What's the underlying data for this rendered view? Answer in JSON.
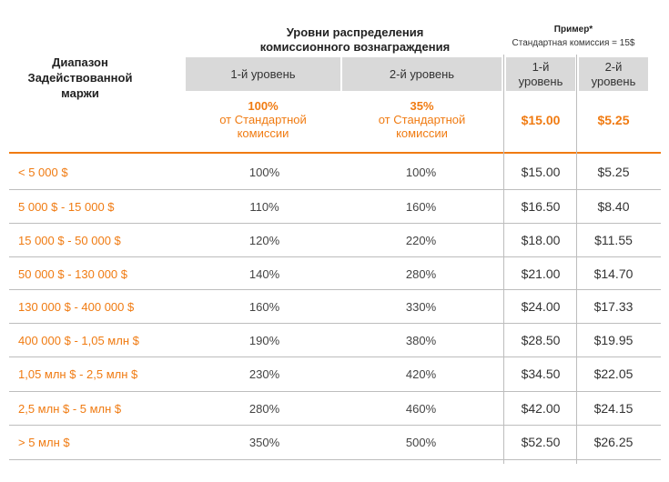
{
  "header": {
    "range_title": [
      "Диапазон",
      "Задействованной",
      "маржи"
    ],
    "levels_group_title": [
      "Уровни распределения",
      "комиссионного вознаграждения"
    ],
    "example_title": "Пример*",
    "example_note": "Стандартная комиссия = 15$",
    "level1_label": "1-й уровень",
    "level2_label": "2-й уровень",
    "ex_level1_label": [
      "1-й",
      "уровень"
    ],
    "ex_level2_label": [
      "2-й",
      "уровень"
    ]
  },
  "highlight": {
    "level1_pct": "100%",
    "level2_pct": "35%",
    "sub_line1": "от Стандартной",
    "sub_line2": "комиссии",
    "ex_level1": "$15.00",
    "ex_level2": "$5.25"
  },
  "rows": [
    {
      "range": "< 5 000 $",
      "l1": "100%",
      "l2": "100%",
      "e1": "$15.00",
      "e2": "$5.25"
    },
    {
      "range": "5 000 $ - 15 000 $",
      "l1": "110%",
      "l2": "160%",
      "e1": "$16.50",
      "e2": "$8.40"
    },
    {
      "range": "15 000 $ - 50 000 $",
      "l1": "120%",
      "l2": "220%",
      "e1": "$18.00",
      "e2": "$11.55"
    },
    {
      "range": "50 000 $ - 130 000 $",
      "l1": "140%",
      "l2": "280%",
      "e1": "$21.00",
      "e2": "$14.70"
    },
    {
      "range": "130 000 $ - 400 000 $",
      "l1": "160%",
      "l2": "330%",
      "e1": "$24.00",
      "e2": "$17.33"
    },
    {
      "range": "400 000 $ - 1,05 млн $",
      "l1": "190%",
      "l2": "380%",
      "e1": "$28.50",
      "e2": "$19.95"
    },
    {
      "range": "1,05 млн $ - 2,5 млн $",
      "l1": "230%",
      "l2": "420%",
      "e1": "$34.50",
      "e2": "$22.05"
    },
    {
      "range": "2,5 млн $ - 5 млн $",
      "l1": "280%",
      "l2": "460%",
      "e1": "$42.00",
      "e2": "$24.15"
    },
    {
      "range": "> 5 млн $",
      "l1": "350%",
      "l2": "500%",
      "e1": "$52.50",
      "e2": "$26.25"
    }
  ],
  "colors": {
    "accent": "#f07b12",
    "header_bg": "#d9d9d9",
    "divider": "#bdbdbd"
  }
}
